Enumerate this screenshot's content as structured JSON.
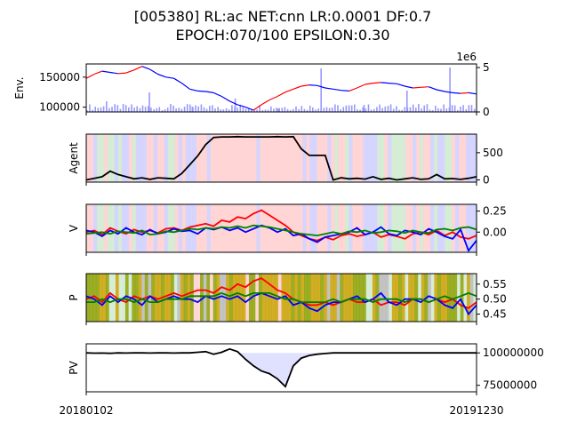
{
  "figure": {
    "title_line1": "[005380] RL:ac NET:cnn LR:0.0001 DF:0.7",
    "title_line2": "EPOCH:070/100 EPSILON:0.30",
    "x_start_label": "20180102",
    "x_end_label": "20191230",
    "colors": {
      "buy": "#ff0000",
      "sell": "#0000ff",
      "hold": "#008000",
      "line": "#000000",
      "volume": "#9999ff",
      "pv_fill": "#e0e0ff",
      "bg_buy": "#ffd0d0",
      "bg_sell": "#d0d0ff",
      "bg_hold": "#d0ead0",
      "explore_a": "#c8a000",
      "explore_b": "#8aa000"
    }
  },
  "chart_data": [
    {
      "panel": "env",
      "type": "line",
      "ylabel": "Env.",
      "yticks": [
        100000,
        150000
      ],
      "ytick_labels": [
        "100000",
        "150000"
      ],
      "ylim": [
        92000,
        172000
      ],
      "right_axis_label": "1e6",
      "right_yticks": [
        0,
        5
      ],
      "right_ytick_labels": [
        "0",
        "5"
      ],
      "right_ylim": [
        0,
        5.4
      ],
      "price": [
        148000,
        155000,
        160000,
        158000,
        156000,
        157000,
        162000,
        168000,
        163000,
        155000,
        150000,
        148000,
        140000,
        130000,
        127000,
        126000,
        124000,
        118000,
        110000,
        104000,
        100000,
        95000,
        104000,
        112000,
        118000,
        125000,
        130000,
        135000,
        137000,
        136000,
        132000,
        130000,
        128000,
        127000,
        132000,
        138000,
        140000,
        141000,
        140000,
        139000,
        135000,
        132000,
        133000,
        134000,
        129000,
        126000,
        124000,
        123000,
        124000,
        122000
      ],
      "volume_spikes": [
        1.2,
        2.2,
        0.6,
        1.5,
        0.4,
        4.9,
        0.8,
        2.4,
        5.0
      ]
    },
    {
      "panel": "agent",
      "type": "line",
      "ylabel": "Agent",
      "yticks": [
        0,
        500
      ],
      "ytick_labels": [
        "0",
        "500"
      ],
      "ylim": [
        -40,
        840
      ],
      "stocks": [
        0,
        30,
        60,
        160,
        100,
        60,
        20,
        40,
        10,
        40,
        30,
        20,
        120,
        280,
        440,
        650,
        780,
        790,
        790,
        795,
        790,
        790,
        790,
        790,
        795,
        790,
        795,
        570,
        450,
        450,
        450,
        0,
        40,
        20,
        30,
        15,
        60,
        10,
        30,
        0,
        20,
        40,
        10,
        20,
        100,
        20,
        25,
        10,
        30,
        60
      ]
    },
    {
      "panel": "v",
      "type": "line",
      "ylabel": "V",
      "yticks": [
        0.0,
        0.25
      ],
      "ytick_labels": [
        "0.00",
        "0.25"
      ],
      "ylim": [
        -0.24,
        0.33
      ],
      "series": [
        {
          "action": "buy",
          "values": [
            0.0,
            0.02,
            -0.03,
            0.05,
            0.01,
            -0.02,
            0.03,
            0.0,
            0.02,
            -0.01,
            0.04,
            0.05,
            0.02,
            0.06,
            0.08,
            0.1,
            0.07,
            0.14,
            0.12,
            0.18,
            0.16,
            0.22,
            0.26,
            0.2,
            0.14,
            0.08,
            0.0,
            -0.04,
            -0.08,
            -0.1,
            -0.06,
            -0.09,
            -0.04,
            -0.02,
            -0.05,
            -0.03,
            0.0,
            -0.06,
            -0.03,
            -0.05,
            -0.08,
            -0.02,
            0.0,
            -0.03,
            0.02,
            -0.04,
            0.0,
            -0.06,
            -0.08,
            -0.04
          ]
        },
        {
          "action": "sell",
          "values": [
            0.02,
            0.0,
            -0.05,
            0.02,
            -0.02,
            0.05,
            0.0,
            -0.03,
            0.03,
            -0.02,
            0.0,
            0.04,
            0.01,
            0.02,
            -0.02,
            0.05,
            0.03,
            0.06,
            0.02,
            0.05,
            0.0,
            0.04,
            0.08,
            0.05,
            0.0,
            0.04,
            -0.04,
            -0.02,
            -0.08,
            -0.12,
            -0.06,
            -0.04,
            -0.02,
            0.0,
            0.05,
            -0.03,
            0.0,
            0.06,
            -0.02,
            -0.04,
            0.02,
            0.0,
            -0.03,
            0.04,
            0.0,
            -0.05,
            -0.08,
            0.03,
            -0.22,
            -0.1
          ]
        },
        {
          "action": "hold",
          "values": [
            -0.02,
            -0.01,
            0.0,
            -0.02,
            0.01,
            0.0,
            -0.01,
            0.02,
            -0.03,
            -0.02,
            0.01,
            0.0,
            0.02,
            0.04,
            0.03,
            0.05,
            0.04,
            0.06,
            0.05,
            0.07,
            0.05,
            0.08,
            0.07,
            0.06,
            0.04,
            0.02,
            0.0,
            -0.02,
            -0.03,
            -0.04,
            -0.02,
            0.0,
            -0.02,
            0.01,
            0.0,
            0.02,
            -0.01,
            0.0,
            0.02,
            0.01,
            -0.01,
            0.02,
            0.0,
            -0.01,
            0.03,
            0.04,
            0.02,
            0.05,
            0.06,
            0.03
          ]
        }
      ]
    },
    {
      "panel": "p",
      "type": "line",
      "ylabel": "P",
      "yticks": [
        0.45,
        0.5,
        0.55
      ],
      "ytick_labels": [
        "0.45",
        "0.50",
        "0.55"
      ],
      "ylim": [
        0.425,
        0.585
      ],
      "series": [
        {
          "action": "buy",
          "values": [
            0.5,
            0.51,
            0.49,
            0.52,
            0.5,
            0.49,
            0.51,
            0.5,
            0.51,
            0.5,
            0.51,
            0.52,
            0.51,
            0.52,
            0.53,
            0.53,
            0.52,
            0.54,
            0.53,
            0.55,
            0.54,
            0.56,
            0.57,
            0.55,
            0.53,
            0.52,
            0.5,
            0.49,
            0.48,
            0.48,
            0.49,
            0.48,
            0.49,
            0.5,
            0.49,
            0.49,
            0.5,
            0.48,
            0.49,
            0.49,
            0.48,
            0.5,
            0.5,
            0.49,
            0.5,
            0.49,
            0.5,
            0.48,
            0.47,
            0.49
          ]
        },
        {
          "action": "sell",
          "values": [
            0.51,
            0.5,
            0.48,
            0.51,
            0.49,
            0.51,
            0.5,
            0.48,
            0.51,
            0.49,
            0.5,
            0.51,
            0.5,
            0.5,
            0.49,
            0.51,
            0.5,
            0.51,
            0.5,
            0.51,
            0.49,
            0.51,
            0.52,
            0.51,
            0.5,
            0.51,
            0.48,
            0.49,
            0.47,
            0.46,
            0.48,
            0.49,
            0.49,
            0.5,
            0.51,
            0.49,
            0.5,
            0.52,
            0.49,
            0.48,
            0.5,
            0.5,
            0.49,
            0.51,
            0.5,
            0.48,
            0.47,
            0.5,
            0.45,
            0.48
          ]
        },
        {
          "action": "hold",
          "values": [
            0.49,
            0.49,
            0.5,
            0.49,
            0.5,
            0.5,
            0.49,
            0.5,
            0.49,
            0.49,
            0.5,
            0.5,
            0.5,
            0.51,
            0.51,
            0.51,
            0.51,
            0.52,
            0.51,
            0.52,
            0.51,
            0.52,
            0.52,
            0.52,
            0.51,
            0.5,
            0.5,
            0.49,
            0.49,
            0.49,
            0.49,
            0.5,
            0.49,
            0.5,
            0.5,
            0.5,
            0.49,
            0.5,
            0.5,
            0.5,
            0.49,
            0.5,
            0.5,
            0.49,
            0.5,
            0.51,
            0.5,
            0.51,
            0.52,
            0.51
          ]
        }
      ]
    },
    {
      "panel": "pv",
      "type": "area",
      "ylabel": "PV",
      "yticks": [
        75000000,
        100000000
      ],
      "ytick_labels": [
        "75000000",
        "100000000"
      ],
      "ylim": [
        70000000,
        107000000
      ],
      "baseline": 100000000,
      "values": [
        100000000,
        99800000,
        99900000,
        99700000,
        100000000,
        99900000,
        100000000,
        100000000,
        99900000,
        100000000,
        100000000,
        99900000,
        100000000,
        100000000,
        100500000,
        101000000,
        99000000,
        100500000,
        103000000,
        101000000,
        95000000,
        90000000,
        86000000,
        84000000,
        80000000,
        74000000,
        90000000,
        96000000,
        98000000,
        99000000,
        99500000,
        100000000,
        100000000,
        100000000,
        100000000,
        100000000,
        100000000,
        100000000,
        100000000,
        100000000,
        100000000,
        100000000,
        100000000,
        100000000,
        100000000,
        100000000,
        100000000,
        100000000,
        100000000,
        100000000
      ]
    }
  ]
}
